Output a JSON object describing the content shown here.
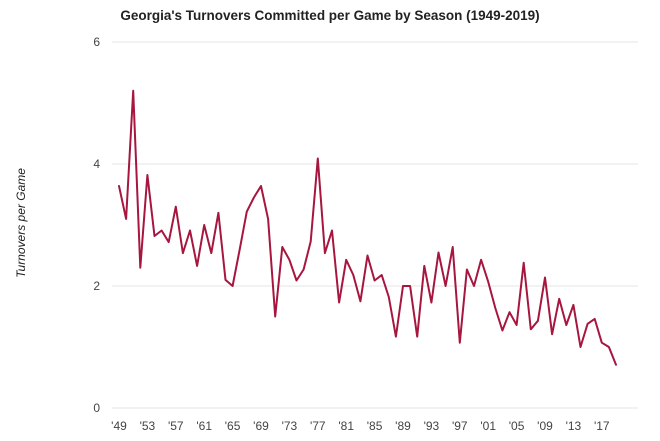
{
  "chart_data": {
    "type": "line",
    "title": "Georgia's Turnovers Committed per Game by Season (1949-2019)",
    "xlabel": "",
    "ylabel": "Turnovers per Game",
    "ylim": [
      0,
      6
    ],
    "yticks": [
      "0",
      "2",
      "4",
      "6"
    ],
    "grid": true,
    "legend": "none",
    "line_color": "#a6163f",
    "grid_color": "#e4e4e4",
    "x_tick_labels": [
      {
        "year": 1949,
        "label": "'49"
      },
      {
        "year": 1953,
        "label": "'53"
      },
      {
        "year": 1957,
        "label": "'57"
      },
      {
        "year": 1961,
        "label": "'61"
      },
      {
        "year": 1965,
        "label": "'65"
      },
      {
        "year": 1969,
        "label": "'69"
      },
      {
        "year": 1973,
        "label": "'73"
      },
      {
        "year": 1977,
        "label": "'77"
      },
      {
        "year": 1981,
        "label": "'81"
      },
      {
        "year": 1985,
        "label": "'85"
      },
      {
        "year": 1989,
        "label": "'89"
      },
      {
        "year": 1993,
        "label": "'93"
      },
      {
        "year": 1997,
        "label": "'97"
      },
      {
        "year": 2001,
        "label": "'01"
      },
      {
        "year": 2005,
        "label": "'05"
      },
      {
        "year": 2009,
        "label": "'09"
      },
      {
        "year": 2013,
        "label": "'13"
      },
      {
        "year": 2017,
        "label": "'17"
      }
    ],
    "x": [
      1949,
      1950,
      1951,
      1952,
      1953,
      1954,
      1955,
      1956,
      1957,
      1958,
      1959,
      1960,
      1961,
      1962,
      1963,
      1964,
      1965,
      1966,
      1967,
      1968,
      1969,
      1970,
      1971,
      1972,
      1973,
      1974,
      1975,
      1976,
      1977,
      1978,
      1979,
      1980,
      1981,
      1982,
      1983,
      1984,
      1985,
      1986,
      1987,
      1988,
      1989,
      1990,
      1991,
      1992,
      1993,
      1994,
      1995,
      1996,
      1997,
      1998,
      1999,
      2000,
      2001,
      2002,
      2003,
      2004,
      2005,
      2006,
      2007,
      2008,
      2009,
      2010,
      2011,
      2012,
      2013,
      2014,
      2015,
      2016,
      2017,
      2018,
      2019
    ],
    "series": [
      {
        "values": [
          3.64,
          3.1,
          5.2,
          2.3,
          3.82,
          2.82,
          2.91,
          2.72,
          3.3,
          2.54,
          2.91,
          2.33,
          3.0,
          2.54,
          3.2,
          2.1,
          2.0,
          2.6,
          3.22,
          3.45,
          3.64,
          3.1,
          1.5,
          2.64,
          2.43,
          2.09,
          2.27,
          2.73,
          4.09,
          2.54,
          2.91,
          1.73,
          2.43,
          2.18,
          1.75,
          2.5,
          2.09,
          2.18,
          1.82,
          1.17,
          2.0,
          2.0,
          1.17,
          2.33,
          1.73,
          2.55,
          2.0,
          2.64,
          1.07,
          2.27,
          2.0,
          2.43,
          2.07,
          1.64,
          1.27,
          1.57,
          1.36,
          2.38,
          1.29,
          1.43,
          2.14,
          1.21,
          1.79,
          1.36,
          1.69,
          1.0,
          1.38,
          1.46,
          1.07,
          1.0,
          0.71
        ]
      }
    ]
  }
}
